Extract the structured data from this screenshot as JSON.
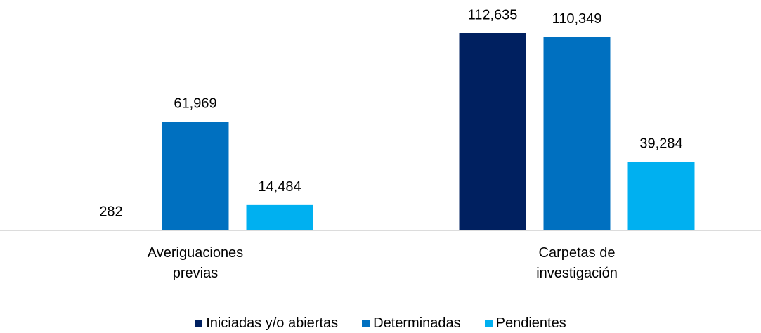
{
  "chart_data": {
    "type": "bar",
    "categories": [
      "Averiguaciones previas",
      "Carpetas de investigación"
    ],
    "series": [
      {
        "name": "Iniciadas y/o abiertas",
        "color": "#002060",
        "values": [
          282,
          112635
        ],
        "value_labels": [
          "282",
          "112,635"
        ]
      },
      {
        "name": "Determinadas",
        "color": "#0070c0",
        "values": [
          61969,
          110349
        ],
        "value_labels": [
          "61,969",
          "110,349"
        ]
      },
      {
        "name": "Pendientes",
        "color": "#00b0f0",
        "values": [
          14484,
          39284
        ],
        "value_labels": [
          "14,484",
          "39,284"
        ]
      }
    ],
    "legend": "bottom"
  }
}
